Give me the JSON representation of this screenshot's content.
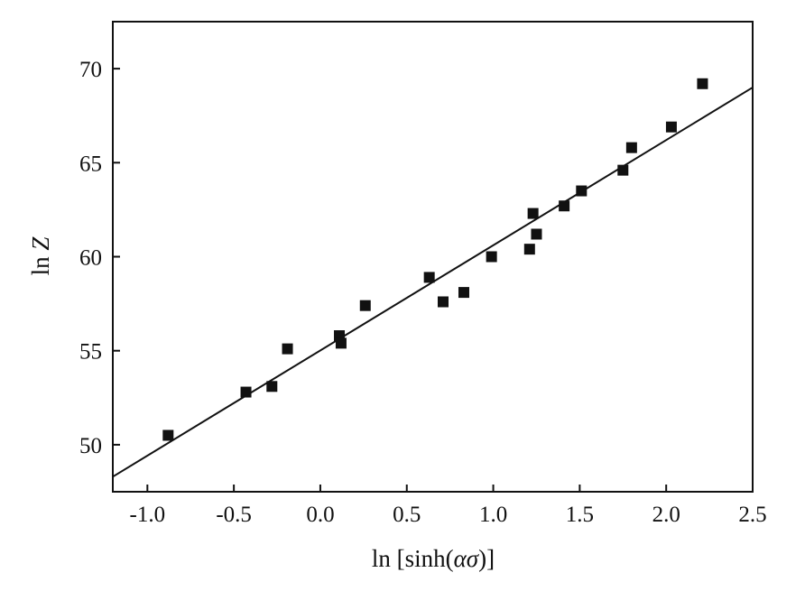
{
  "chart_data": {
    "type": "scatter",
    "xlabel_parts": {
      "prefix": "ln [sinh(",
      "symbol": "ασ",
      "suffix": ")]"
    },
    "ylabel_parts": {
      "prefix": "ln ",
      "symbol": "Z"
    },
    "xlim": [
      -1.2,
      2.5
    ],
    "ylim": [
      47.5,
      72.5
    ],
    "xticks": [
      -1.0,
      -0.5,
      0.0,
      0.5,
      1.0,
      1.5,
      2.0,
      2.5
    ],
    "xtick_labels": [
      "-1.0",
      "-0.5",
      "0.0",
      "0.5",
      "1.0",
      "1.5",
      "2.0",
      "2.5"
    ],
    "yticks": [
      50,
      55,
      60,
      65,
      70
    ],
    "ytick_labels": [
      "50",
      "55",
      "60",
      "65",
      "70"
    ],
    "grid": false,
    "points": [
      {
        "x": -0.88,
        "y": 50.5
      },
      {
        "x": -0.43,
        "y": 52.8
      },
      {
        "x": -0.28,
        "y": 53.1
      },
      {
        "x": -0.19,
        "y": 55.1
      },
      {
        "x": 0.11,
        "y": 55.8
      },
      {
        "x": 0.12,
        "y": 55.4
      },
      {
        "x": 0.26,
        "y": 57.4
      },
      {
        "x": 0.63,
        "y": 58.9
      },
      {
        "x": 0.71,
        "y": 57.6
      },
      {
        "x": 0.83,
        "y": 58.1
      },
      {
        "x": 0.99,
        "y": 60.0
      },
      {
        "x": 1.21,
        "y": 60.4
      },
      {
        "x": 1.23,
        "y": 62.3
      },
      {
        "x": 1.25,
        "y": 61.2
      },
      {
        "x": 1.41,
        "y": 62.7
      },
      {
        "x": 1.51,
        "y": 63.5
      },
      {
        "x": 1.75,
        "y": 64.6
      },
      {
        "x": 1.8,
        "y": 65.8
      },
      {
        "x": 2.03,
        "y": 66.9
      },
      {
        "x": 2.21,
        "y": 69.2
      }
    ],
    "fit_line": {
      "x1": -1.2,
      "y1": 48.3,
      "x2": 2.5,
      "y2": 69.0
    },
    "colors": {
      "marker": "#111111",
      "line": "#111111",
      "axes": "#111111"
    }
  }
}
